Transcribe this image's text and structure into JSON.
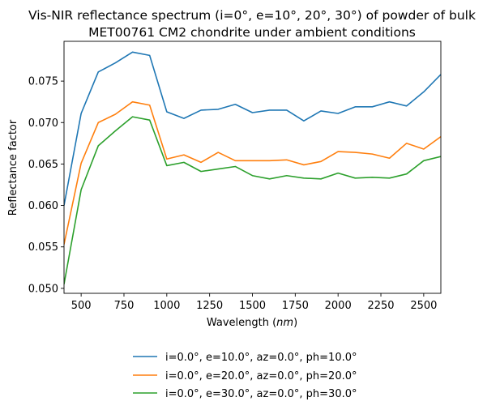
{
  "chart_data": {
    "type": "line",
    "title_lines": [
      "Vis-NIR reflectance spectrum (i=0°, e=10°, 20°, 30°) of powder of bulk",
      "MET00761 CM2 chondrite under ambient conditions"
    ],
    "xlabel_prefix": "Wavelength (",
    "xlabel_unit": "nm",
    "xlabel_suffix": ")",
    "ylabel": "Reflectance factor",
    "xlim": [
      400,
      2600
    ],
    "ylim": [
      0.0494,
      0.0798
    ],
    "xticks": [
      500,
      750,
      1000,
      1250,
      1500,
      1750,
      2000,
      2250,
      2500
    ],
    "xtick_labels": [
      "500",
      "750",
      "1000",
      "1250",
      "1500",
      "1750",
      "2000",
      "2250",
      "2500"
    ],
    "yticks": [
      0.05,
      0.055,
      0.06,
      0.065,
      0.07,
      0.075
    ],
    "ytick_labels": [
      "0.050",
      "0.055",
      "0.060",
      "0.065",
      "0.070",
      "0.075"
    ],
    "legend_position": "below plot, centered",
    "x": [
      400,
      500,
      600,
      700,
      800,
      900,
      1000,
      1100,
      1200,
      1300,
      1400,
      1500,
      1600,
      1700,
      1800,
      1900,
      2000,
      2100,
      2200,
      2300,
      2400,
      2500,
      2600
    ],
    "series": [
      {
        "name": "i=0.0°, e=10.0°, az=0.0°, ph=10.0°",
        "color": "#1f77b4",
        "values": [
          0.06,
          0.0711,
          0.0761,
          0.0772,
          0.0785,
          0.0781,
          0.0713,
          0.0705,
          0.0715,
          0.0716,
          0.0722,
          0.0712,
          0.0715,
          0.0715,
          0.0702,
          0.0714,
          0.0711,
          0.0719,
          0.0719,
          0.0725,
          0.072,
          0.0737,
          0.0758
        ]
      },
      {
        "name": "i=0.0°, e=20.0°, az=0.0°, ph=20.0°",
        "color": "#ff7f0e",
        "values": [
          0.0553,
          0.0651,
          0.07,
          0.071,
          0.0725,
          0.0721,
          0.0656,
          0.0661,
          0.0652,
          0.0664,
          0.0654,
          0.0654,
          0.0654,
          0.0655,
          0.0649,
          0.0653,
          0.0665,
          0.0664,
          0.0662,
          0.0657,
          0.0675,
          0.0668,
          0.0683
        ]
      },
      {
        "name": "i=0.0°, e=30.0°, az=0.0°, ph=30.0°",
        "color": "#2ca02c",
        "values": [
          0.0505,
          0.0619,
          0.0672,
          0.069,
          0.0707,
          0.0703,
          0.0648,
          0.0652,
          0.0641,
          0.0644,
          0.0647,
          0.0636,
          0.0632,
          0.0636,
          0.0633,
          0.0632,
          0.0639,
          0.0633,
          0.0634,
          0.0633,
          0.0638,
          0.0654,
          0.0659
        ]
      }
    ]
  }
}
